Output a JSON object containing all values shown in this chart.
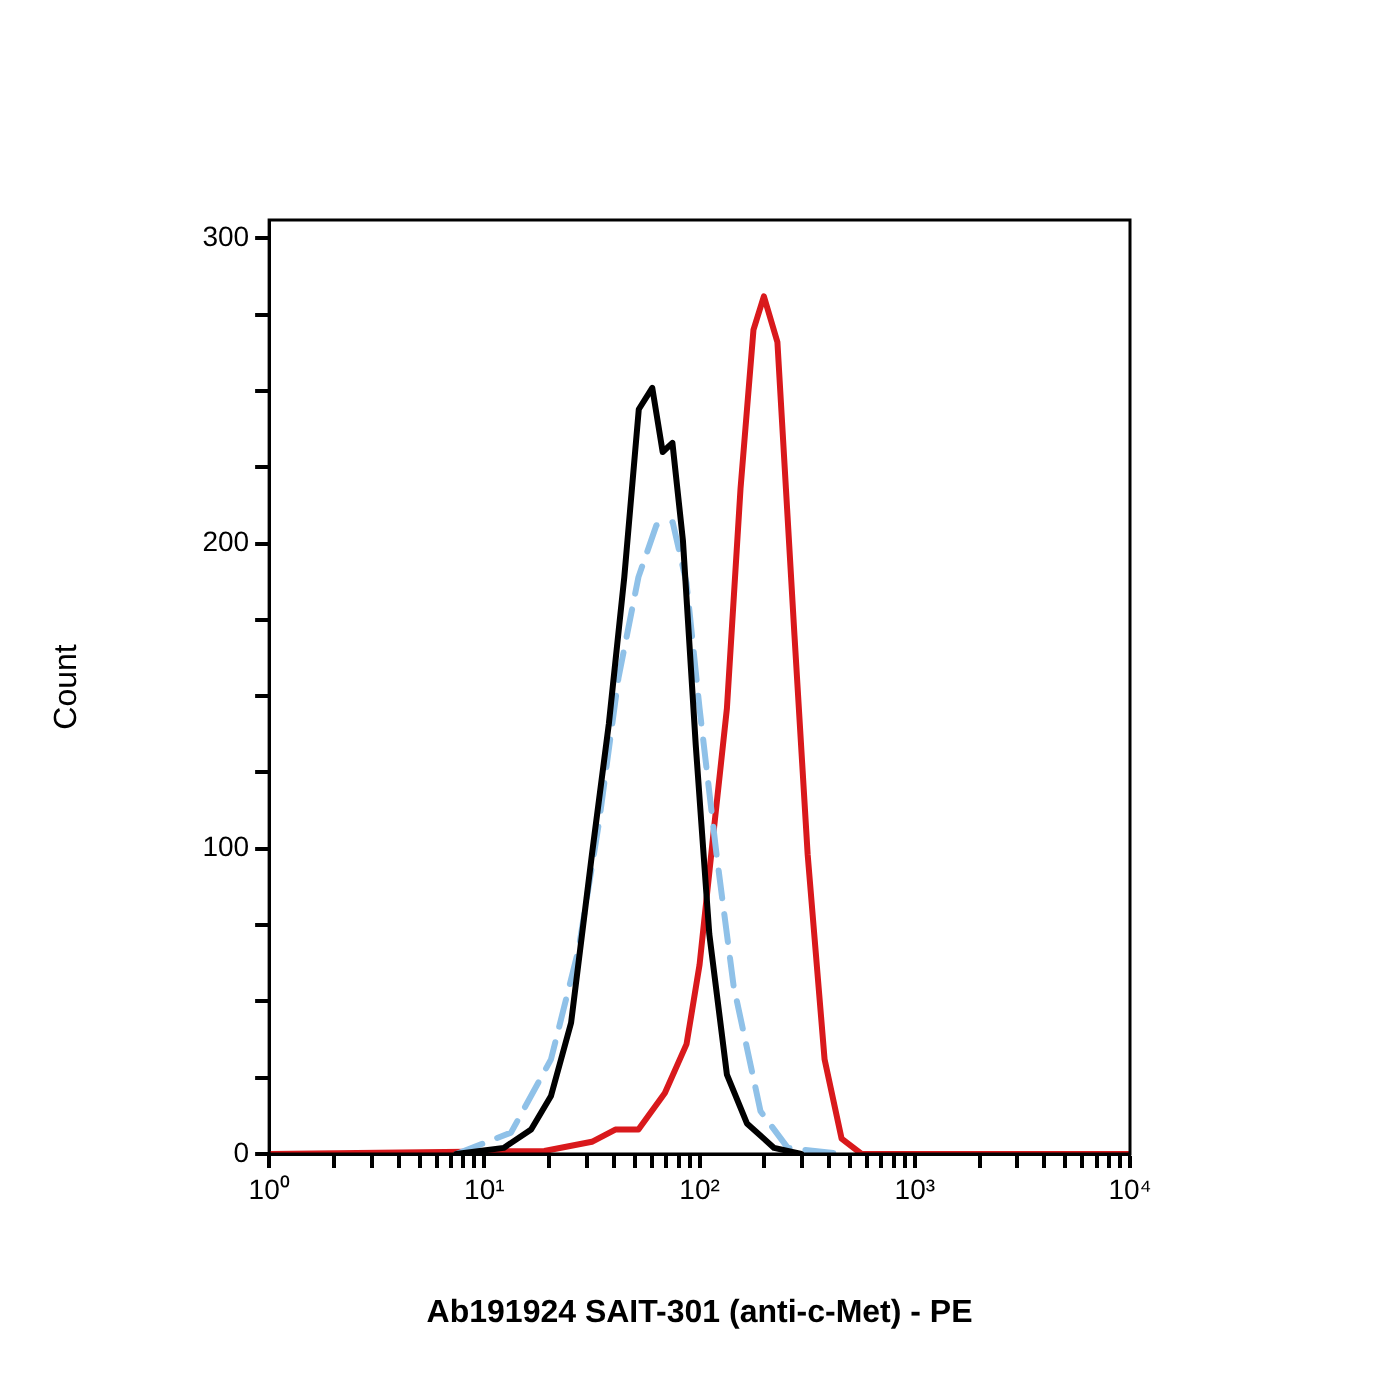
{
  "chart_data": {
    "type": "line",
    "xlabel": "Ab191924 SAIT-301 (anti-c-Met) - PE",
    "ylabel": "Count",
    "log": "x",
    "grid": false,
    "legend": false,
    "marker": "none",
    "xlim": [
      1,
      10000
    ],
    "ylim": [
      0,
      306
    ],
    "xticks": [
      {
        "value": 1,
        "label": "10⁰"
      },
      {
        "value": 2,
        "label": null
      },
      {
        "value": 3,
        "label": null
      },
      {
        "value": 4,
        "label": null
      },
      {
        "value": 5,
        "label": null
      },
      {
        "value": 6,
        "label": null
      },
      {
        "value": 7,
        "label": null
      },
      {
        "value": 8,
        "label": null
      },
      {
        "value": 9,
        "label": null
      },
      {
        "value": 10,
        "label": "10¹"
      },
      {
        "value": 20,
        "label": null
      },
      {
        "value": 30,
        "label": null
      },
      {
        "value": 40,
        "label": null
      },
      {
        "value": 50,
        "label": null
      },
      {
        "value": 60,
        "label": null
      },
      {
        "value": 70,
        "label": null
      },
      {
        "value": 80,
        "label": null
      },
      {
        "value": 90,
        "label": null
      },
      {
        "value": 100,
        "label": "10²"
      },
      {
        "value": 200,
        "label": null
      },
      {
        "value": 300,
        "label": null
      },
      {
        "value": 400,
        "label": null
      },
      {
        "value": 500,
        "label": null
      },
      {
        "value": 600,
        "label": null
      },
      {
        "value": 700,
        "label": null
      },
      {
        "value": 800,
        "label": null
      },
      {
        "value": 900,
        "label": null
      },
      {
        "value": 1000,
        "label": "10³"
      },
      {
        "value": 2000,
        "label": null
      },
      {
        "value": 3000,
        "label": null
      },
      {
        "value": 4000,
        "label": null
      },
      {
        "value": 5000,
        "label": null
      },
      {
        "value": 6000,
        "label": null
      },
      {
        "value": 7000,
        "label": null
      },
      {
        "value": 8000,
        "label": null
      },
      {
        "value": 9000,
        "label": null
      },
      {
        "value": 10000,
        "label": "10⁴"
      }
    ],
    "yticks": [
      0,
      {
        "value": 25,
        "label": null
      },
      {
        "value": 50,
        "label": null
      },
      {
        "value": 75,
        "label": null
      },
      100,
      {
        "value": 125,
        "label": null
      },
      {
        "value": 150,
        "label": null
      },
      {
        "value": 175,
        "label": null
      },
      200,
      {
        "value": 225,
        "label": null
      },
      {
        "value": 250,
        "label": null
      },
      {
        "value": 275,
        "label": null
      },
      300
    ],
    "series": [
      {
        "color": "#000000",
        "line_style": "solid",
        "x": [
          7.4,
          12.3,
          16.5,
          20.4,
          25.3,
          31.6,
          37.9,
          44.7,
          52.2,
          60.3,
          67.4,
          74.8,
          83.7,
          96,
          111,
          134,
          166,
          222,
          297
        ],
        "values": [
          0,
          2,
          8,
          19,
          43,
          98,
          141,
          189,
          244,
          251,
          230,
          233,
          201,
          134,
          72,
          26,
          10,
          2,
          0
        ]
      },
      {
        "color": "#8fc1e8",
        "line_style": "dashed",
        "x": [
          7.4,
          13.3,
          20.4,
          27.4,
          34,
          42,
          52,
          63,
          75,
          87,
          100,
          120,
          144,
          192,
          257,
          457
        ],
        "values": [
          0,
          7,
          31,
          67,
          108,
          156,
          189,
          206,
          207,
          187,
          146,
          98,
          55,
          14,
          2,
          0
        ]
      },
      {
        "color": "#d9191c",
        "line_style": "solid",
        "x": [
          1,
          19,
          31.6,
          40.6,
          52,
          69,
          87,
          100,
          116,
          134,
          155,
          178,
          199,
          230,
          276,
          318,
          381,
          457,
          566,
          10000
        ],
        "values": [
          0,
          1,
          4,
          8,
          8,
          20,
          36,
          62,
          105,
          146,
          218,
          270,
          281,
          266,
          170,
          98,
          31,
          5,
          0,
          0
        ]
      }
    ]
  }
}
